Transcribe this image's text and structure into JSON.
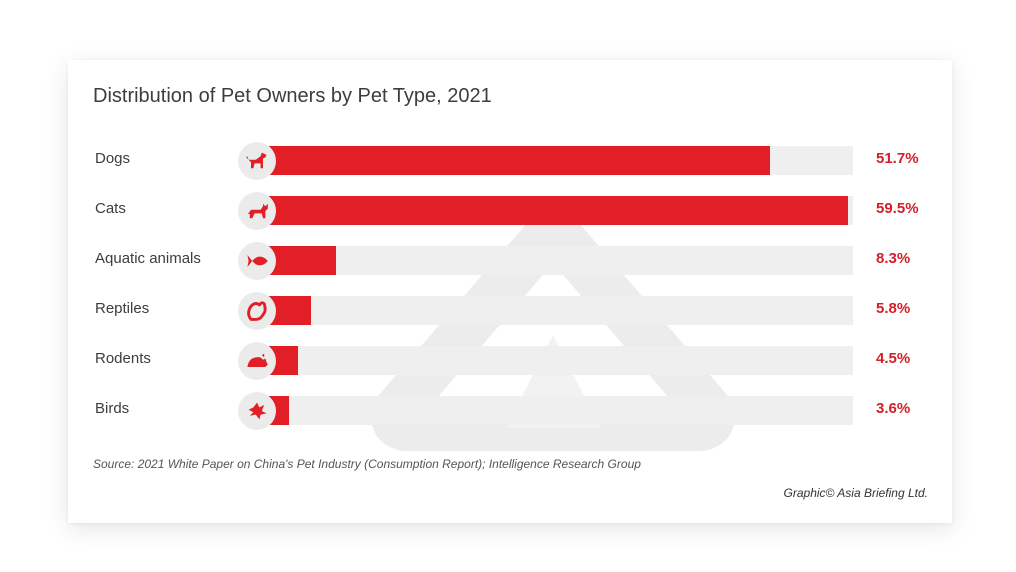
{
  "chart_data": {
    "type": "bar",
    "orientation": "horizontal",
    "title": "Distribution of Pet Owners by Pet Type, 2021",
    "categories": [
      "Dogs",
      "Cats",
      "Aquatic animals",
      "Reptiles",
      "Rodents",
      "Birds"
    ],
    "values": [
      51.7,
      59.5,
      8.3,
      5.8,
      4.5,
      3.6
    ],
    "value_labels": [
      "51.7%",
      "59.5%",
      "8.3%",
      "5.8%",
      "4.5%",
      "3.6%"
    ],
    "icons": [
      "dog-icon",
      "cat-icon",
      "fish-icon",
      "reptile-icon",
      "rodent-icon",
      "bird-icon"
    ],
    "xlim": [
      0,
      60
    ],
    "xlabel": "",
    "ylabel": "",
    "grid": false,
    "legend": "none",
    "bar_color": "#e21f26",
    "track_color": "#efefef",
    "label_color": "#d0212a"
  },
  "footer": {
    "source": "Source: 2021 White Paper on China's Pet Industry (Consumption Report); Intelligence Research Group",
    "credit": "Graphic© Asia Briefing Ltd."
  }
}
